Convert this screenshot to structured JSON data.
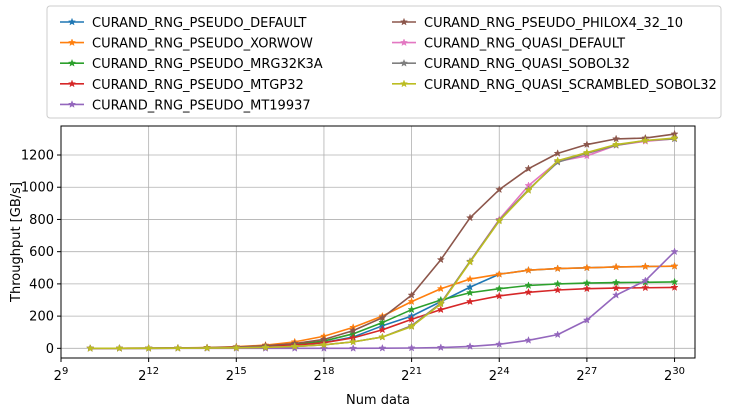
{
  "chart_data": {
    "type": "line",
    "xlabel": "Num data",
    "ylabel": "Throughput [GB/s]",
    "xscale": "log2",
    "xlim": [
      9,
      30.7
    ],
    "ylim": [
      -60,
      1380
    ],
    "grid": true,
    "legend_position": "top",
    "legend_columns": 2,
    "x_ticks": [
      {
        "exp": 9,
        "base": "2",
        "power": "9"
      },
      {
        "exp": 12,
        "base": "2",
        "power": "12"
      },
      {
        "exp": 15,
        "base": "2",
        "power": "15"
      },
      {
        "exp": 18,
        "base": "2",
        "power": "18"
      },
      {
        "exp": 21,
        "base": "2",
        "power": "21"
      },
      {
        "exp": 24,
        "base": "2",
        "power": "24"
      },
      {
        "exp": 27,
        "base": "2",
        "power": "27"
      },
      {
        "exp": 30,
        "base": "2",
        "power": "30"
      }
    ],
    "y_ticks": [
      0,
      200,
      400,
      600,
      800,
      1000,
      1200
    ],
    "x_exponents": [
      10,
      11,
      12,
      13,
      14,
      15,
      16,
      17,
      18,
      19,
      20,
      21,
      22,
      23,
      24,
      25,
      26,
      27,
      28,
      29,
      30
    ],
    "series": [
      {
        "name": "CURAND_RNG_PSEUDO_DEFAULT",
        "color": "#1f77b4",
        "values": [
          0.1,
          0.2,
          0.4,
          0.9,
          2,
          4,
          9,
          18,
          36,
          70,
          140,
          200,
          290,
          380,
          460,
          485,
          495,
          500,
          505,
          508,
          510
        ]
      },
      {
        "name": "CURAND_RNG_PSEUDO_XORWOW",
        "color": "#ff7f0e",
        "values": [
          0.3,
          0.6,
          1.2,
          2.5,
          5,
          10,
          20,
          40,
          75,
          130,
          200,
          290,
          370,
          430,
          460,
          485,
          495,
          500,
          505,
          508,
          510
        ]
      },
      {
        "name": "CURAND_RNG_PSEUDO_MRG32K3A",
        "color": "#2ca02c",
        "values": [
          0.2,
          0.4,
          0.8,
          1.6,
          3,
          6,
          12,
          24,
          45,
          90,
          160,
          240,
          300,
          345,
          370,
          390,
          400,
          405,
          408,
          410,
          412
        ]
      },
      {
        "name": "CURAND_RNG_PSEUDO_MTGP32",
        "color": "#d62728",
        "values": [
          0.1,
          0.3,
          0.6,
          1.2,
          2.5,
          5,
          10,
          20,
          35,
          65,
          115,
          180,
          240,
          290,
          325,
          348,
          362,
          370,
          374,
          376,
          378
        ]
      },
      {
        "name": "CURAND_RNG_PSEUDO_MT19937",
        "color": "#9467bd",
        "values": [
          0,
          0,
          0,
          0,
          0,
          0,
          0,
          0,
          0,
          0,
          1,
          2,
          5,
          12,
          25,
          50,
          85,
          175,
          330,
          420,
          600
        ]
      },
      {
        "name": "CURAND_RNG_PSEUDO_PHILOX4_32_10",
        "color": "#8c564b",
        "values": [
          0.2,
          0.5,
          1,
          2,
          4,
          8,
          16,
          30,
          55,
          110,
          190,
          330,
          550,
          810,
          985,
          1115,
          1210,
          1265,
          1300,
          1305,
          1330
        ]
      },
      {
        "name": "CURAND_RNG_QUASI_DEFAULT",
        "color": "#e377c2",
        "values": [
          0.1,
          0.2,
          0.4,
          0.8,
          1.5,
          3,
          6,
          12,
          22,
          40,
          70,
          140,
          280,
          540,
          800,
          1010,
          1160,
          1195,
          1260,
          1285,
          1300
        ]
      },
      {
        "name": "CURAND_RNG_QUASI_SOBOL32",
        "color": "#7f7f7f",
        "values": [
          0.1,
          0.2,
          0.4,
          0.8,
          1.5,
          3,
          6,
          12,
          22,
          40,
          70,
          140,
          280,
          540,
          795,
          985,
          1155,
          1210,
          1260,
          1290,
          1300
        ]
      },
      {
        "name": "CURAND_RNG_QUASI_SCRAMBLED_SOBOL32",
        "color": "#bcbd22",
        "values": [
          0.1,
          0.2,
          0.4,
          0.8,
          1.5,
          3,
          6,
          12,
          22,
          40,
          70,
          135,
          275,
          535,
          790,
          980,
          1165,
          1215,
          1265,
          1290,
          1305
        ]
      }
    ]
  }
}
